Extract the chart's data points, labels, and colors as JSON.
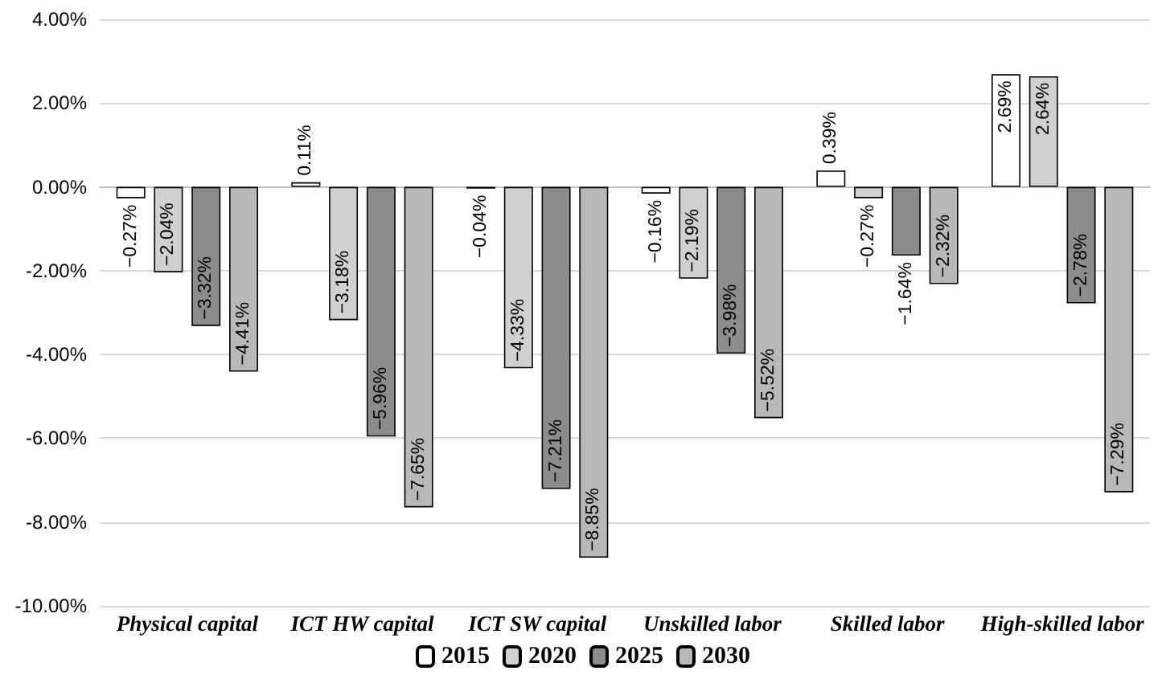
{
  "chart_data": {
    "type": "bar",
    "categories": [
      "Physical capital",
      "ICT HW capital",
      "ICT SW capital",
      "Unskilled labor",
      "Skilled labor",
      "High-skilled labor"
    ],
    "series": [
      {
        "name": "2015",
        "color": "#ffffff",
        "values": [
          -0.27,
          0.11,
          -0.04,
          -0.16,
          0.39,
          2.69
        ],
        "value_labels": [
          "−0.27%",
          "0.11%",
          "−0.04%",
          "−0.16%",
          "0.39%",
          "2.69%"
        ]
      },
      {
        "name": "2020",
        "color": "#d0d0d0",
        "values": [
          -2.04,
          -3.18,
          -4.33,
          -2.19,
          -0.27,
          2.64
        ],
        "value_labels": [
          "−2.04%",
          "−3.18%",
          "−4.33%",
          "−2.19%",
          "−0.27%",
          "2.64%"
        ]
      },
      {
        "name": "2025",
        "color": "#8c8c8c",
        "values": [
          -3.32,
          -5.96,
          -7.21,
          -3.98,
          -1.64,
          -2.78
        ],
        "value_labels": [
          "−3.32%",
          "−5.96%",
          "−7.21%",
          "−3.98%",
          "−1.64%",
          "−2.78%"
        ]
      },
      {
        "name": "2030",
        "color": "#b8b8b8",
        "values": [
          -4.41,
          -7.65,
          -8.85,
          -5.52,
          -2.32,
          -7.29
        ],
        "value_labels": [
          "−4.41%",
          "−7.65%",
          "−8.85%",
          "−5.52%",
          "−2.32%",
          "−7.29%"
        ]
      }
    ],
    "ylim": [
      -10,
      4
    ],
    "yticks": [
      {
        "value": -10,
        "label": "-10.00%"
      },
      {
        "value": -8,
        "label": "-8.00%"
      },
      {
        "value": -6,
        "label": "-6.00%"
      },
      {
        "value": -4,
        "label": "-4.00%"
      },
      {
        "value": -2,
        "label": "-2.00%"
      },
      {
        "value": 0,
        "label": "0.00%"
      },
      {
        "value": 2,
        "label": "2.00%"
      },
      {
        "value": 4,
        "label": "4.00%"
      }
    ],
    "grid": "y",
    "legend": "bottom"
  }
}
